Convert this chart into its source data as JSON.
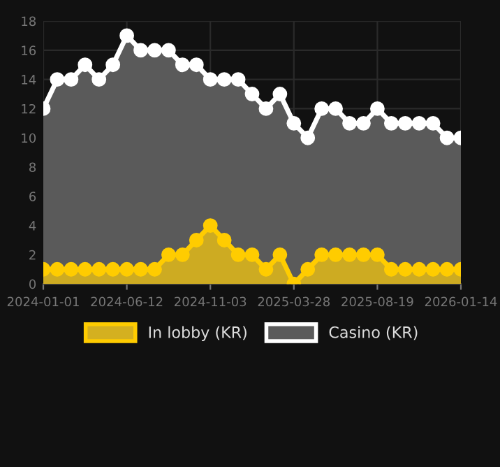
{
  "chart_data": {
    "type": "area",
    "categories": [
      "2024-01-01",
      null,
      null,
      null,
      null,
      null,
      "2024-06-12",
      null,
      null,
      null,
      null,
      null,
      "2024-11-03",
      null,
      null,
      null,
      null,
      null,
      "2025-03-28",
      null,
      null,
      null,
      null,
      null,
      "2025-08-19",
      null,
      null,
      null,
      null,
      null,
      "2026-01-14"
    ],
    "series": [
      {
        "name": "In lobby (KR)",
        "color": "#ffcc00",
        "values": [
          1,
          1,
          1,
          1,
          1,
          1,
          1,
          1,
          1,
          2,
          2,
          3,
          4,
          3,
          2,
          2,
          1,
          2,
          0,
          1,
          2,
          2,
          2,
          2,
          2,
          1,
          1,
          1,
          1,
          1,
          1
        ]
      },
      {
        "name": "Casino (KR)",
        "color": "#ffffff",
        "values": [
          12,
          14,
          14,
          15,
          14,
          15,
          17,
          16,
          16,
          16,
          15,
          15,
          14,
          14,
          14,
          13,
          12,
          13,
          11,
          10,
          12,
          12,
          11,
          11,
          12,
          11,
          11,
          11,
          11,
          10,
          10
        ]
      }
    ],
    "ylim": [
      0,
      18
    ],
    "yticks": [
      0,
      2,
      4,
      6,
      8,
      10,
      12,
      14,
      16,
      18
    ],
    "grid": true,
    "legend": "bottom",
    "marker": "circle",
    "line_style": "solid"
  }
}
